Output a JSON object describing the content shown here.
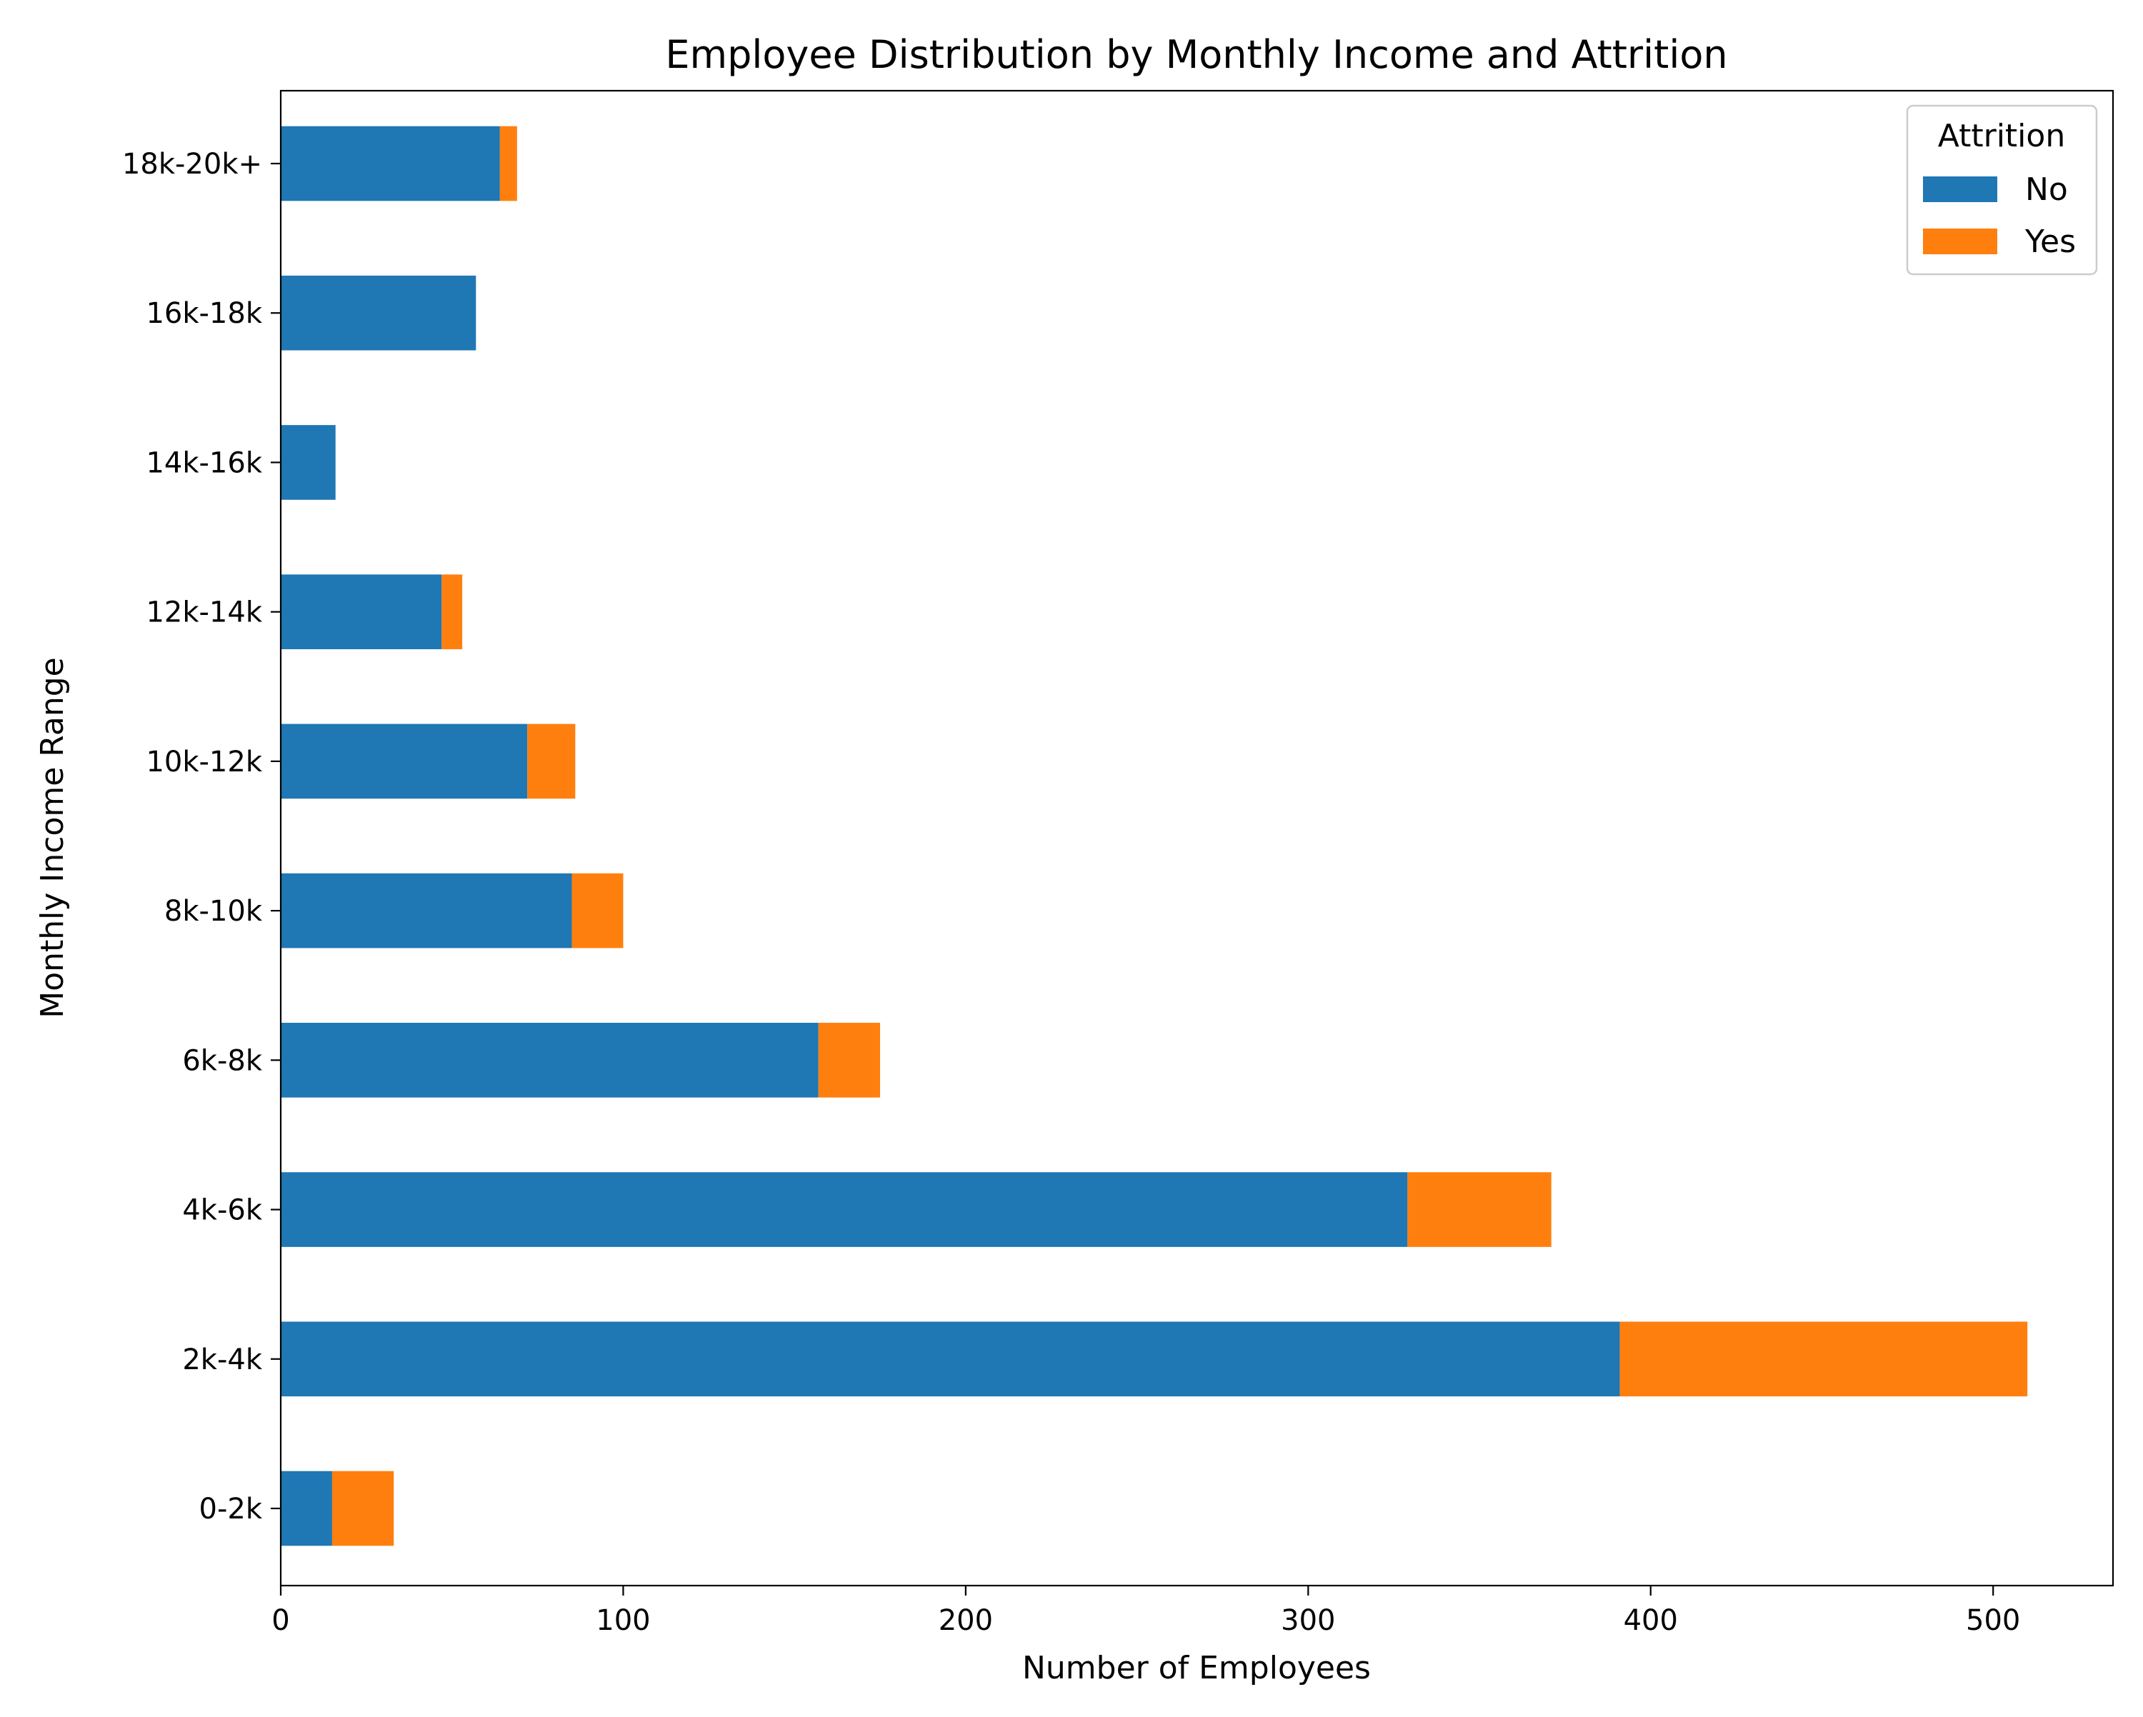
{
  "chart_data": {
    "type": "bar",
    "orientation": "horizontal",
    "stacked": true,
    "title": "Employee Distribution by Monthly Income and Attrition",
    "xlabel": "Number of Employees",
    "ylabel": "Monthly Income Range",
    "categories": [
      "0-2k",
      "2k-4k",
      "4k-6k",
      "6k-8k",
      "8k-10k",
      "10k-12k",
      "12k-14k",
      "14k-16k",
      "16k-18k",
      "18k-20k+"
    ],
    "series": [
      {
        "name": "No",
        "color": "#1f77b4",
        "values": [
          15,
          391,
          329,
          157,
          85,
          72,
          47,
          16,
          57,
          64
        ]
      },
      {
        "name": "Yes",
        "color": "#ff7f0e",
        "values": [
          18,
          119,
          42,
          18,
          15,
          14,
          6,
          0,
          0,
          5
        ]
      }
    ],
    "xlim": [
      0,
      535
    ],
    "xticks": [
      0,
      100,
      200,
      300,
      400,
      500
    ],
    "grid": false,
    "legend": {
      "title": "Attrition",
      "position": "top-right"
    }
  }
}
